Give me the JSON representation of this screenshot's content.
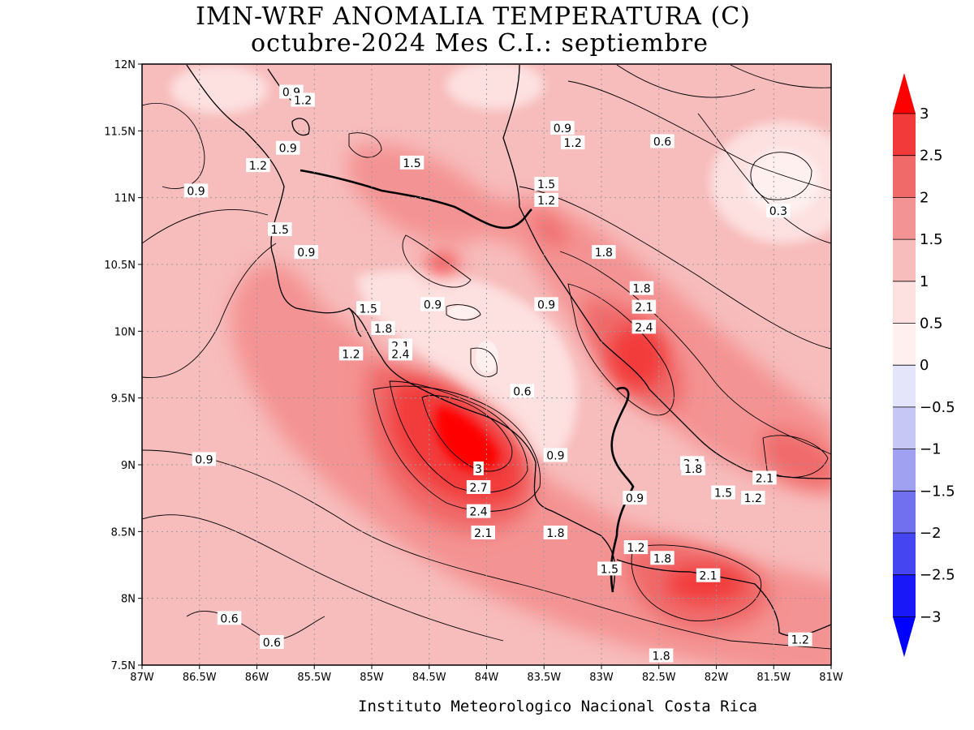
{
  "title": {
    "line1": "IMN-WRF  ANOMALIA TEMPERATURA (C)",
    "line2": "octubre-2024 Mes C.I.: septiembre"
  },
  "credit": "Instituto Meteorologico Nacional Costa Rica",
  "map": {
    "lon_range": [
      -87,
      -81
    ],
    "lat_range": [
      7.5,
      12
    ],
    "x_ticks": [
      "87W",
      "86.5W",
      "86W",
      "85.5W",
      "85W",
      "84.5W",
      "84W",
      "83.5W",
      "83W",
      "82.5W",
      "82W",
      "81.5W",
      "81W"
    ],
    "y_ticks": [
      "12N",
      "11.5N",
      "11N",
      "10.5N",
      "10N",
      "9.5N",
      "9N",
      "8.5N",
      "8N",
      "7.5N"
    ],
    "grid": "dotted",
    "background_color": "#f7bcbc"
  },
  "colorbar": {
    "levels": [
      "3",
      "2.5",
      "2",
      "1.5",
      "1",
      "0.5",
      "0",
      "−0.5",
      "−1",
      "−1.5",
      "−2",
      "−2.5",
      "−3"
    ],
    "colors": [
      "#ff0000",
      "#f23a3a",
      "#f06a6a",
      "#f49393",
      "#f7bcbc",
      "#fde0e0",
      "#fff0f0",
      "#e4e4fb",
      "#c7c7f6",
      "#a1a1f1",
      "#7171f0",
      "#4545f2",
      "#1818f8",
      "#0000ff"
    ]
  },
  "contour_labels": [
    {
      "text": "0.9",
      "lon": -85.7,
      "lat": 11.79
    },
    {
      "text": "1.2",
      "lon": -85.6,
      "lat": 11.73
    },
    {
      "text": "0.9",
      "lon": -83.34,
      "lat": 11.52
    },
    {
      "text": "1.2",
      "lon": -83.25,
      "lat": 11.41
    },
    {
      "text": "0.6",
      "lon": -82.47,
      "lat": 11.42
    },
    {
      "text": "0.9",
      "lon": -85.73,
      "lat": 11.37
    },
    {
      "text": "1.5",
      "lon": -84.65,
      "lat": 11.26
    },
    {
      "text": "1.2",
      "lon": -85.99,
      "lat": 11.24
    },
    {
      "text": "0.9",
      "lon": -86.53,
      "lat": 11.05
    },
    {
      "text": "1.5",
      "lon": -83.48,
      "lat": 11.1
    },
    {
      "text": "1.2",
      "lon": -83.48,
      "lat": 10.98
    },
    {
      "text": "0.3",
      "lon": -81.46,
      "lat": 10.9
    },
    {
      "text": "1.5",
      "lon": -85.8,
      "lat": 10.76
    },
    {
      "text": "0.9",
      "lon": -85.57,
      "lat": 10.59
    },
    {
      "text": "1.8",
      "lon": -82.98,
      "lat": 10.59
    },
    {
      "text": "1.8",
      "lon": -82.65,
      "lat": 10.32
    },
    {
      "text": "0.9",
      "lon": -84.47,
      "lat": 10.2
    },
    {
      "text": "0.9",
      "lon": -83.48,
      "lat": 10.2
    },
    {
      "text": "2.1",
      "lon": -82.63,
      "lat": 10.18
    },
    {
      "text": "1.5",
      "lon": -85.03,
      "lat": 10.17
    },
    {
      "text": "2.4",
      "lon": -82.63,
      "lat": 10.03
    },
    {
      "text": "1.8",
      "lon": -84.9,
      "lat": 10.02
    },
    {
      "text": "2.1",
      "lon": -84.75,
      "lat": 9.89
    },
    {
      "text": "2.4",
      "lon": -84.75,
      "lat": 9.83
    },
    {
      "text": "1.2",
      "lon": -85.18,
      "lat": 9.83
    },
    {
      "text": "0.6",
      "lon": -83.69,
      "lat": 9.55
    },
    {
      "text": "0.9",
      "lon": -86.46,
      "lat": 9.04
    },
    {
      "text": "0.9",
      "lon": -83.4,
      "lat": 9.07
    },
    {
      "text": "3",
      "lon": -84.07,
      "lat": 8.97
    },
    {
      "text": "2.1",
      "lon": -82.21,
      "lat": 9.01
    },
    {
      "text": "1.8",
      "lon": -82.2,
      "lat": 8.97
    },
    {
      "text": "2.1",
      "lon": -81.58,
      "lat": 8.9
    },
    {
      "text": "2.7",
      "lon": -84.07,
      "lat": 8.83
    },
    {
      "text": "1.5",
      "lon": -81.94,
      "lat": 8.79
    },
    {
      "text": "1.2",
      "lon": -81.68,
      "lat": 8.75
    },
    {
      "text": "0.9",
      "lon": -82.71,
      "lat": 8.75
    },
    {
      "text": "2.4",
      "lon": -84.07,
      "lat": 8.65
    },
    {
      "text": "2.1",
      "lon": -84.03,
      "lat": 8.49
    },
    {
      "text": "1.8",
      "lon": -83.4,
      "lat": 8.49
    },
    {
      "text": "1.2",
      "lon": -82.7,
      "lat": 8.38
    },
    {
      "text": "1.8",
      "lon": -82.47,
      "lat": 8.3
    },
    {
      "text": "1.5",
      "lon": -82.93,
      "lat": 8.22
    },
    {
      "text": "2.1",
      "lon": -82.07,
      "lat": 8.17
    },
    {
      "text": "0.6",
      "lon": -86.24,
      "lat": 7.85
    },
    {
      "text": "0.6",
      "lon": -85.87,
      "lat": 7.67
    },
    {
      "text": "1.2",
      "lon": -81.27,
      "lat": 7.69
    },
    {
      "text": "1.8",
      "lon": -82.48,
      "lat": 7.57
    }
  ]
}
